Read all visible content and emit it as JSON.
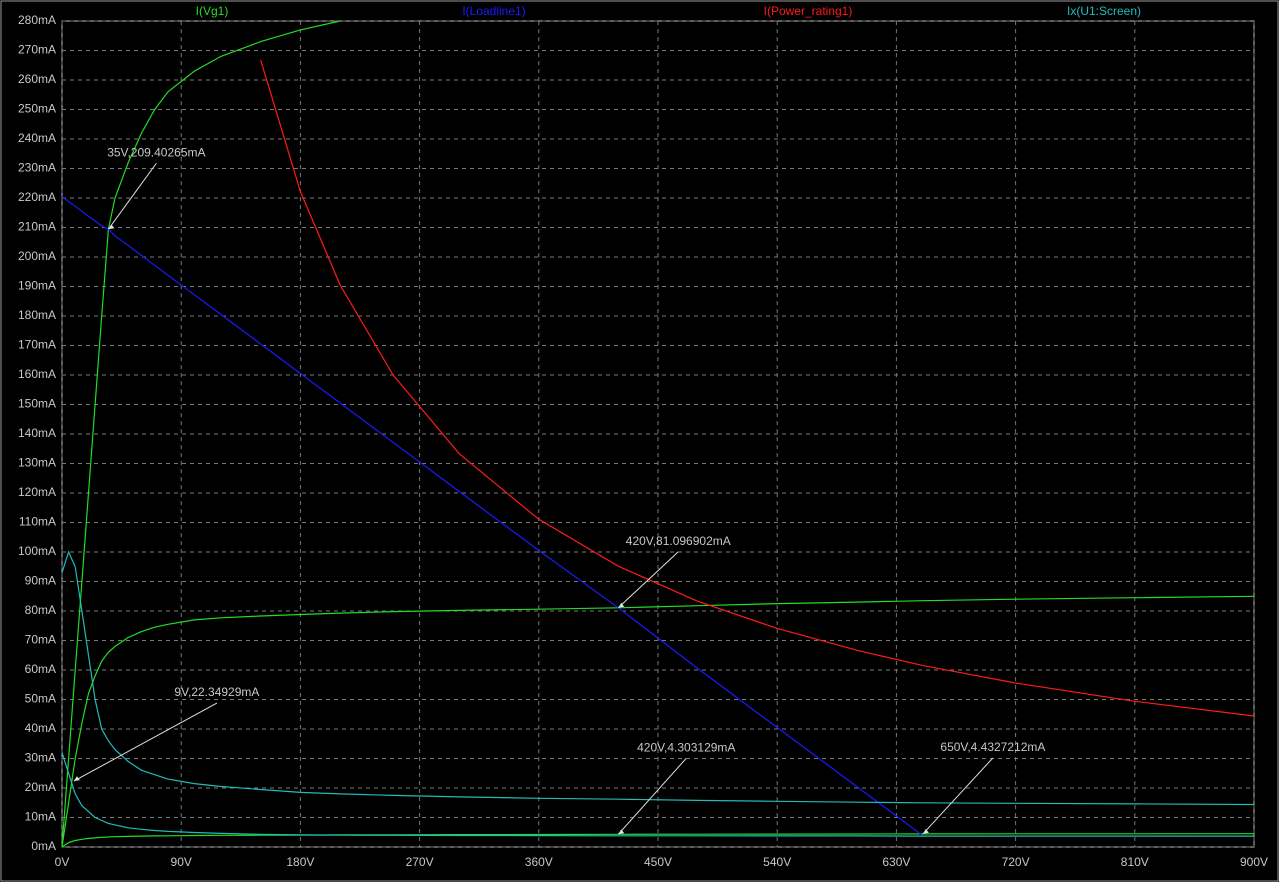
{
  "chart_data": {
    "type": "line",
    "x": [
      0,
      5,
      10,
      15,
      20,
      25,
      30,
      35,
      40,
      50,
      60,
      70,
      80,
      100,
      120,
      150,
      180,
      210,
      250,
      300,
      360,
      420,
      480,
      540,
      600,
      650,
      720,
      810,
      900
    ],
    "series": [
      {
        "name": "I(Vg1)",
        "color": "#22dd22",
        "values": [
          [
            0,
            30,
            60,
            90,
            120,
            150,
            180,
            209.4,
            220,
            232,
            242,
            250,
            256,
            263,
            268,
            273,
            277,
            280,
            null,
            null,
            null,
            null,
            null,
            null,
            null,
            null,
            null,
            null,
            null
          ],
          [
            0,
            15,
            30,
            42,
            52,
            58,
            63,
            66,
            68,
            71,
            73,
            74.5,
            75.5,
            77,
            77.7,
            78.3,
            78.8,
            79.3,
            79.8,
            80.2,
            80.6,
            81.1,
            81.8,
            82.5,
            83,
            83.5,
            84,
            84.5,
            85
          ],
          [
            0,
            1.5,
            2.2,
            2.6,
            2.9,
            3.1,
            3.3,
            3.4,
            3.5,
            3.6,
            3.7,
            3.75,
            3.8,
            3.9,
            3.95,
            4,
            4.05,
            4.1,
            4.15,
            4.2,
            4.25,
            4.3,
            4.33,
            4.36,
            4.4,
            4.43,
            4.46,
            4.48,
            4.5
          ]
        ]
      },
      {
        "name": "I(Loadline1)",
        "color": "#1a1aff",
        "values": [
          [
            220.5,
            218.8,
            217.2,
            215.5,
            213.8,
            212.2,
            210.5,
            209.4,
            207.2,
            203.9,
            200.5,
            197.2,
            193.8,
            187.2,
            180.5,
            170.5,
            160.5,
            150.5,
            137.2,
            120.5,
            100.5,
            81.1,
            60.5,
            40.5,
            20.5,
            3.8,
            null,
            null,
            null
          ]
        ]
      },
      {
        "name": "I(Power_rating1)",
        "color": "#ff1a1a",
        "values": [
          [
            null,
            null,
            null,
            null,
            null,
            null,
            null,
            null,
            null,
            null,
            null,
            null,
            null,
            null,
            null,
            266.7,
            222.2,
            190.5,
            160,
            133.3,
            111.1,
            95.2,
            83.3,
            74.1,
            66.7,
            61.5,
            55.6,
            49.4,
            44.4
          ]
        ]
      },
      {
        "name": "Ix(U1:Screen)",
        "color": "#22bbbb",
        "values": [
          [
            93,
            100,
            95,
            80,
            65,
            50,
            40,
            36,
            33,
            29,
            26,
            24.5,
            23,
            21.5,
            20.5,
            19.5,
            18.5,
            18,
            17.5,
            17,
            16.5,
            16.2,
            15.8,
            15.5,
            15.2,
            15,
            14.8,
            14.6,
            14.4
          ],
          [
            32,
            25,
            18,
            14,
            12,
            10,
            9,
            8,
            7.5,
            6.5,
            6,
            5.6,
            5.3,
            4.9,
            4.6,
            4.3,
            4.1,
            4,
            3.95,
            3.9,
            3.85,
            3.8,
            3.8,
            3.75,
            3.75,
            3.7,
            3.7,
            3.7,
            3.7
          ]
        ]
      }
    ],
    "annotations": [
      {
        "text": "35V,209.40265mA",
        "x": 35,
        "y": 209.40265
      },
      {
        "text": "420V,81.096902mA",
        "x": 420,
        "y": 81.096902
      },
      {
        "text": "9V,22.34929mA",
        "x": 9,
        "y": 22.34929
      },
      {
        "text": "420V,4.303129mA",
        "x": 420,
        "y": 4.303129
      },
      {
        "text": "650V,4.4327212mA",
        "x": 650,
        "y": 4.4327212
      }
    ],
    "xlim": [
      0,
      900
    ],
    "ylim": [
      0,
      280
    ],
    "grid": true,
    "xticks": [
      {
        "value": 0,
        "label": "0V"
      },
      {
        "value": 90,
        "label": "90V"
      },
      {
        "value": 180,
        "label": "180V"
      },
      {
        "value": 270,
        "label": "270V"
      },
      {
        "value": 360,
        "label": "360V"
      },
      {
        "value": 450,
        "label": "450V"
      },
      {
        "value": 540,
        "label": "540V"
      },
      {
        "value": 630,
        "label": "630V"
      },
      {
        "value": 720,
        "label": "720V"
      },
      {
        "value": 810,
        "label": "810V"
      },
      {
        "value": 900,
        "label": "900V"
      }
    ],
    "yticks": [
      {
        "value": 0,
        "label": "0mA"
      },
      {
        "value": 10,
        "label": "10mA"
      },
      {
        "value": 20,
        "label": "20mA"
      },
      {
        "value": 30,
        "label": "30mA"
      },
      {
        "value": 40,
        "label": "40mA"
      },
      {
        "value": 50,
        "label": "50mA"
      },
      {
        "value": 60,
        "label": "60mA"
      },
      {
        "value": 70,
        "label": "70mA"
      },
      {
        "value": 80,
        "label": "80mA"
      },
      {
        "value": 90,
        "label": "90mA"
      },
      {
        "value": 100,
        "label": "100mA"
      },
      {
        "value": 110,
        "label": "110mA"
      },
      {
        "value": 120,
        "label": "120mA"
      },
      {
        "value": 130,
        "label": "130mA"
      },
      {
        "value": 140,
        "label": "140mA"
      },
      {
        "value": 150,
        "label": "150mA"
      },
      {
        "value": 160,
        "label": "160mA"
      },
      {
        "value": 170,
        "label": "170mA"
      },
      {
        "value": 180,
        "label": "180mA"
      },
      {
        "value": 190,
        "label": "190mA"
      },
      {
        "value": 200,
        "label": "200mA"
      },
      {
        "value": 210,
        "label": "210mA"
      },
      {
        "value": 220,
        "label": "220mA"
      },
      {
        "value": 230,
        "label": "230mA"
      },
      {
        "value": 240,
        "label": "240mA"
      },
      {
        "value": 250,
        "label": "250mA"
      },
      {
        "value": 260,
        "label": "260mA"
      },
      {
        "value": 270,
        "label": "270mA"
      },
      {
        "value": 280,
        "label": "280mA"
      }
    ]
  }
}
